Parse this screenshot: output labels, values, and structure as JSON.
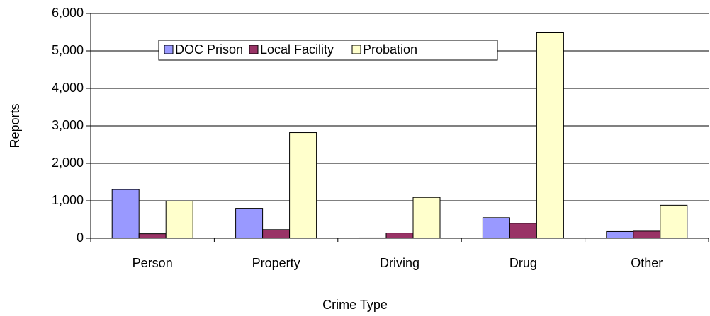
{
  "chart_data": {
    "type": "bar",
    "xlabel": "Crime Type",
    "ylabel": "Reports",
    "categories": [
      "Person",
      "Property",
      "Driving",
      "Drug",
      "Other"
    ],
    "series": [
      {
        "name": "DOC Prison",
        "color": "#9999ff",
        "values": [
          1300,
          800,
          10,
          550,
          180
        ]
      },
      {
        "name": "Local Facility",
        "color": "#993366",
        "values": [
          120,
          230,
          140,
          400,
          190
        ]
      },
      {
        "name": "Probation",
        "color": "#ffffcc",
        "values": [
          1000,
          2820,
          1090,
          5500,
          880
        ]
      }
    ],
    "ylim": [
      0,
      6000
    ],
    "yticks": [
      0,
      {
        "value": 1000,
        "label": "1,000"
      },
      {
        "value": 2000,
        "label": "2,000"
      },
      {
        "value": 3000,
        "label": "3,000"
      },
      {
        "value": 4000,
        "label": "4,000"
      },
      {
        "value": 5000,
        "label": "5,000"
      },
      {
        "value": 6000,
        "label": "6,000"
      }
    ],
    "grid": true,
    "legend": "top"
  }
}
